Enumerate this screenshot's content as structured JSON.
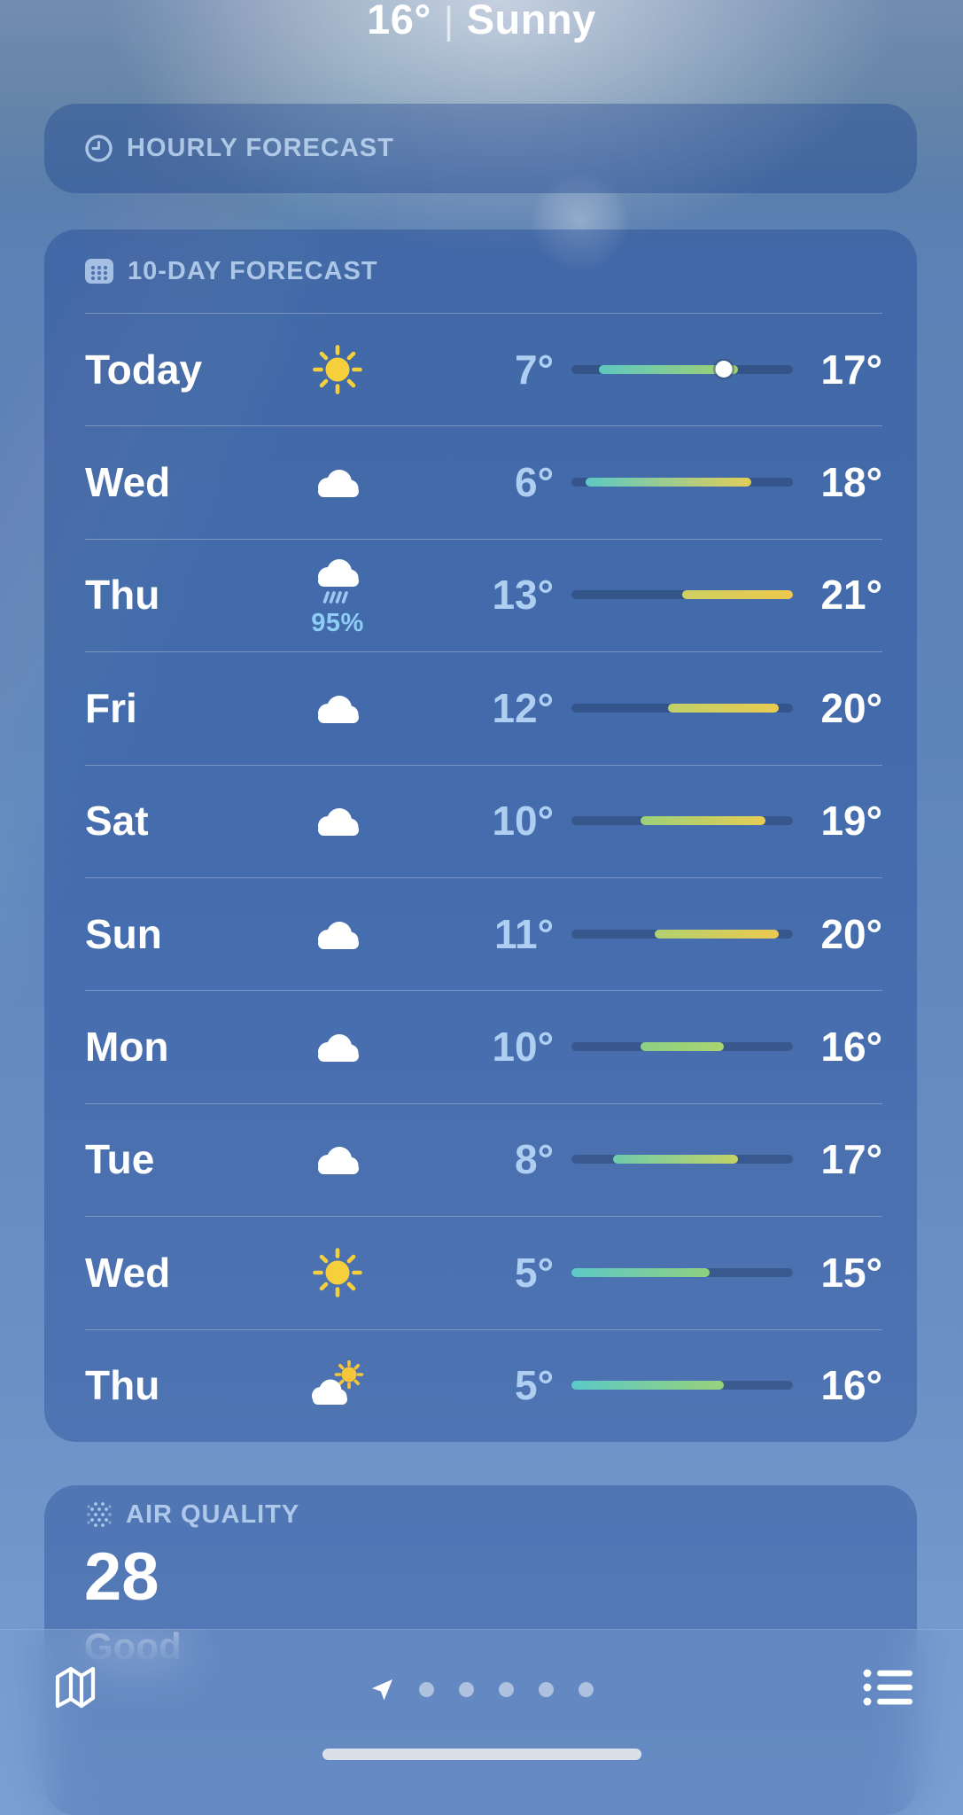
{
  "header": {
    "temperature": "16°",
    "separator": "|",
    "condition": "Sunny"
  },
  "hourly_card": {
    "title": "HOURLY FORECAST"
  },
  "ten_day_card": {
    "title": "10-DAY FORECAST",
    "temp_scale_min": 5,
    "temp_scale_max": 21,
    "days": [
      {
        "day": "Today",
        "icon": "sun",
        "low": "7°",
        "high": "17°",
        "bar": {
          "start_pct": 12.5,
          "end_pct": 75,
          "color_start": "#5ec8c0",
          "color_end": "#a3d06e",
          "dot_pct": 68.75
        }
      },
      {
        "day": "Wed",
        "icon": "cloud",
        "low": "6°",
        "high": "18°",
        "bar": {
          "start_pct": 6.25,
          "end_pct": 81.25,
          "color_start": "#5cc9c4",
          "color_end": "#e2ce58"
        }
      },
      {
        "day": "Thu",
        "icon": "rain",
        "precip": "95%",
        "low": "13°",
        "high": "21°",
        "bar": {
          "start_pct": 50,
          "end_pct": 100,
          "color_start": "#cdd062",
          "color_end": "#eec84d"
        }
      },
      {
        "day": "Fri",
        "icon": "cloud",
        "low": "12°",
        "high": "20°",
        "bar": {
          "start_pct": 43.75,
          "end_pct": 93.75,
          "color_start": "#c0d168",
          "color_end": "#ebcb50"
        }
      },
      {
        "day": "Sat",
        "icon": "cloud",
        "low": "10°",
        "high": "19°",
        "bar": {
          "start_pct": 31.25,
          "end_pct": 87.5,
          "color_start": "#9bd07a",
          "color_end": "#e7cd53"
        }
      },
      {
        "day": "Sun",
        "icon": "cloud",
        "low": "11°",
        "high": "20°",
        "bar": {
          "start_pct": 37.5,
          "end_pct": 93.75,
          "color_start": "#b0d170",
          "color_end": "#ecca4e"
        }
      },
      {
        "day": "Mon",
        "icon": "cloud",
        "low": "10°",
        "high": "16°",
        "bar": {
          "start_pct": 31.25,
          "end_pct": 68.75,
          "color_start": "#8ccf84",
          "color_end": "#abd56f"
        }
      },
      {
        "day": "Tue",
        "icon": "cloud",
        "low": "8°",
        "high": "17°",
        "bar": {
          "start_pct": 18.75,
          "end_pct": 75,
          "color_start": "#6ecbaa",
          "color_end": "#c3d366"
        }
      },
      {
        "day": "Wed",
        "icon": "sun",
        "low": "5°",
        "high": "15°",
        "bar": {
          "start_pct": 0,
          "end_pct": 62.5,
          "color_start": "#5dc9c6",
          "color_end": "#8ed081"
        }
      },
      {
        "day": "Thu",
        "icon": "partly",
        "low": "5°",
        "high": "16°",
        "bar": {
          "start_pct": 0,
          "end_pct": 68.75,
          "color_start": "#5bc9c6",
          "color_end": "#97d27a"
        }
      }
    ]
  },
  "air_quality_card": {
    "title": "AIR QUALITY",
    "value": "28",
    "label": "Good"
  },
  "toolbar": {
    "page_dots": 5
  },
  "colors": {
    "accent_text": "#aecff1",
    "section_title": "#c5ddf6",
    "precip_text": "#8ecdf5",
    "sun_yellow": "#f5d03c",
    "track": "rgba(19,38,66,0.30)"
  }
}
